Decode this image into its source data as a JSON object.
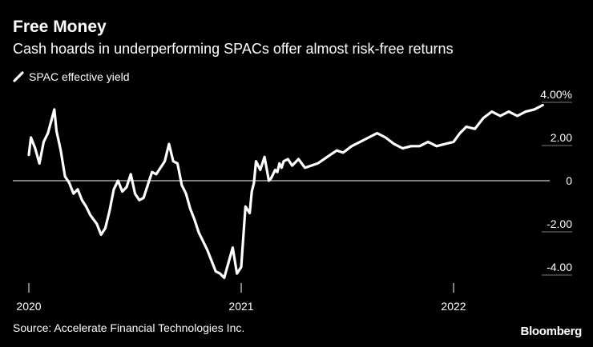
{
  "header": {
    "title": "Free Money",
    "subtitle": "Cash hoards in underperforming SPACs offer almost risk-free returns"
  },
  "legend": {
    "label": "SPAC effective yield",
    "color": "#ffffff"
  },
  "footer": {
    "source": "Source: Accelerate Financial Technologies Inc.",
    "brand": "Bloomberg"
  },
  "chart_data": {
    "type": "line",
    "title": "Free Money",
    "subtitle": "Cash hoards in underperforming SPACs offer almost risk-free returns",
    "xlabel": "",
    "ylabel": "",
    "x_ticks": [
      "2020",
      "2021",
      "2022"
    ],
    "x_tick_values": [
      2020.0,
      2021.0,
      2022.0
    ],
    "xlim": [
      2020.0,
      2022.61
    ],
    "y_ticks": [
      "4.00%",
      "2.00",
      "0",
      "-2.00",
      "-4.00"
    ],
    "y_tick_values": [
      4,
      2,
      0,
      -2,
      -4
    ],
    "ylim": [
      -5.2,
      4.6
    ],
    "zero_line": true,
    "legend_position": "top-left",
    "series": [
      {
        "name": "SPAC effective yield",
        "color": "#ffffff",
        "x": [
          2020.0,
          2020.01,
          2020.03,
          2020.05,
          2020.07,
          2020.09,
          2020.12,
          2020.13,
          2020.15,
          2020.17,
          2020.19,
          2020.21,
          2020.23,
          2020.25,
          2020.27,
          2020.29,
          2020.32,
          2020.34,
          2020.36,
          2020.38,
          2020.4,
          2020.42,
          2020.44,
          2020.46,
          2020.48,
          2020.5,
          2020.52,
          2020.54,
          2020.56,
          2020.58,
          2020.6,
          2020.62,
          2020.64,
          2020.66,
          2020.68,
          2020.7,
          2020.72,
          2020.74,
          2020.76,
          2020.78,
          2020.8,
          2020.82,
          2020.84,
          2020.86,
          2020.88,
          2020.9,
          2020.92,
          2020.94,
          2020.96,
          2020.98,
          2021.0,
          2021.02,
          2021.04,
          2021.05,
          2021.06,
          2021.07,
          2021.09,
          2021.11,
          2021.13,
          2021.14,
          2021.15,
          2021.16,
          2021.17,
          2021.18,
          2021.19,
          2021.2,
          2021.22,
          2021.24,
          2021.27,
          2021.3,
          2021.33,
          2021.36,
          2021.39,
          2021.42,
          2021.45,
          2021.48,
          2021.52,
          2021.56,
          2021.6,
          2021.64,
          2021.68,
          2021.72,
          2021.76,
          2021.8,
          2021.84,
          2021.88,
          2021.92,
          2021.96,
          2022.0,
          2022.03,
          2022.06,
          2022.1,
          2022.14,
          2022.18,
          2022.22,
          2022.26,
          2022.3,
          2022.34,
          2022.38,
          2022.42
        ],
        "values": [
          1.2,
          2.0,
          1.5,
          0.8,
          1.8,
          2.2,
          3.3,
          2.3,
          1.4,
          0.2,
          -0.1,
          -0.6,
          -0.4,
          -0.9,
          -1.2,
          -1.6,
          -2.0,
          -2.5,
          -2.2,
          -1.4,
          -0.4,
          0.0,
          -0.5,
          -0.3,
          0.3,
          -0.6,
          -0.9,
          -0.8,
          -0.2,
          0.4,
          0.3,
          0.6,
          0.9,
          1.7,
          0.9,
          0.8,
          -0.2,
          -0.6,
          -1.3,
          -1.8,
          -2.4,
          -2.8,
          -3.2,
          -3.7,
          -4.2,
          -4.3,
          -4.5,
          -3.8,
          -3.1,
          -4.3,
          -4.0,
          -1.2,
          -1.5,
          -0.5,
          -0.1,
          0.9,
          0.5,
          1.1,
          0.0,
          0.1,
          0.3,
          0.5,
          0.4,
          0.8,
          0.6,
          0.9,
          1.0,
          0.7,
          1.0,
          0.6,
          0.7,
          0.8,
          1.0,
          1.2,
          1.4,
          1.3,
          1.6,
          1.8,
          2.0,
          2.2,
          2.0,
          1.7,
          1.5,
          1.6,
          1.6,
          1.8,
          1.6,
          1.7,
          1.8,
          2.2,
          2.5,
          2.4,
          2.9,
          3.2,
          3.0,
          3.2,
          3.0,
          3.2,
          3.3,
          3.5
        ]
      }
    ]
  }
}
